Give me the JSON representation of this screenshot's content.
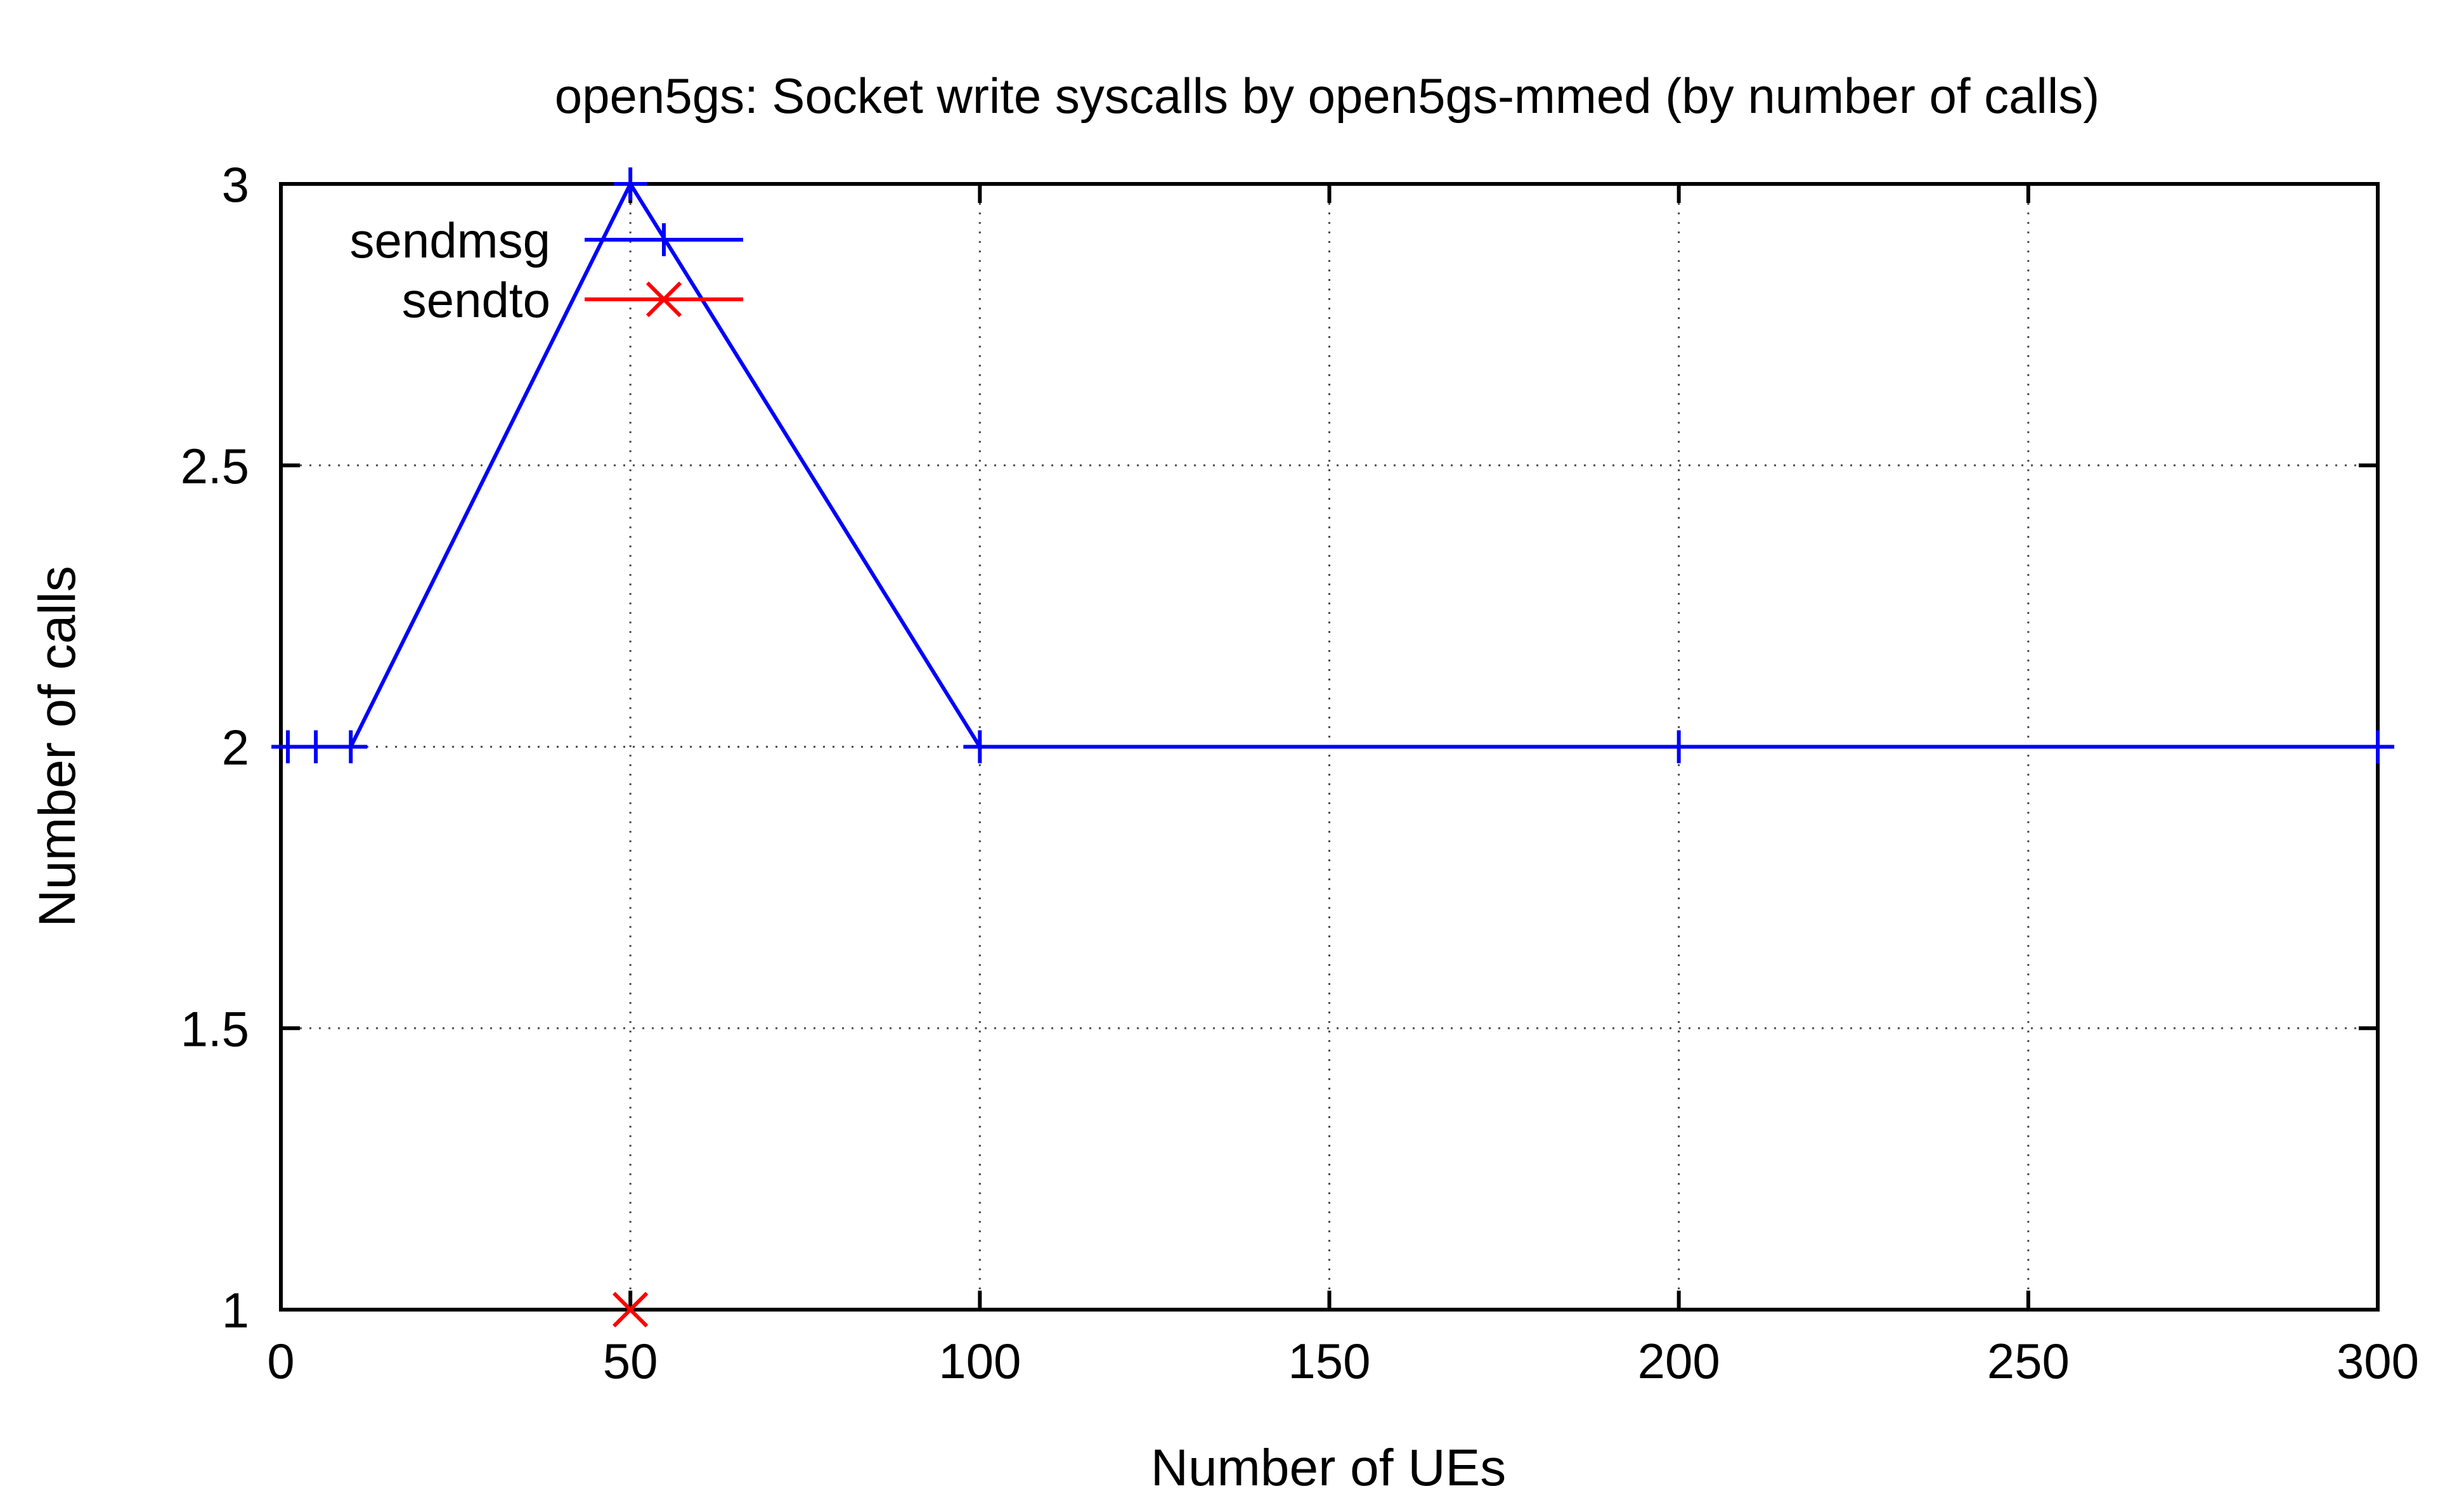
{
  "chart_data": {
    "type": "line",
    "title": "open5gs: Socket write syscalls by open5gs-mmed (by number of calls)",
    "xlabel": "Number of UEs",
    "ylabel": "Number of calls",
    "xlim": [
      0,
      300
    ],
    "ylim": [
      1,
      3
    ],
    "x_ticks": [
      0,
      50,
      100,
      150,
      200,
      250,
      300
    ],
    "y_ticks": [
      1,
      1.5,
      2,
      2.5,
      3
    ],
    "x_tick_labels": [
      "0",
      "50",
      "100",
      "150",
      "200",
      "250",
      "300"
    ],
    "y_tick_labels": [
      "1",
      "1.5",
      "2",
      "2.5",
      "3"
    ],
    "grid": true,
    "legend_position": "top-left",
    "series": [
      {
        "name": "sendmsg",
        "color": "#0000ff",
        "marker": "plus",
        "x": [
          1,
          5,
          10,
          50,
          100,
          200,
          300
        ],
        "y": [
          2,
          2,
          2,
          3,
          2,
          2,
          2
        ]
      },
      {
        "name": "sendto",
        "color": "#ff0000",
        "marker": "cross",
        "x": [
          50
        ],
        "y": [
          1
        ]
      }
    ]
  }
}
